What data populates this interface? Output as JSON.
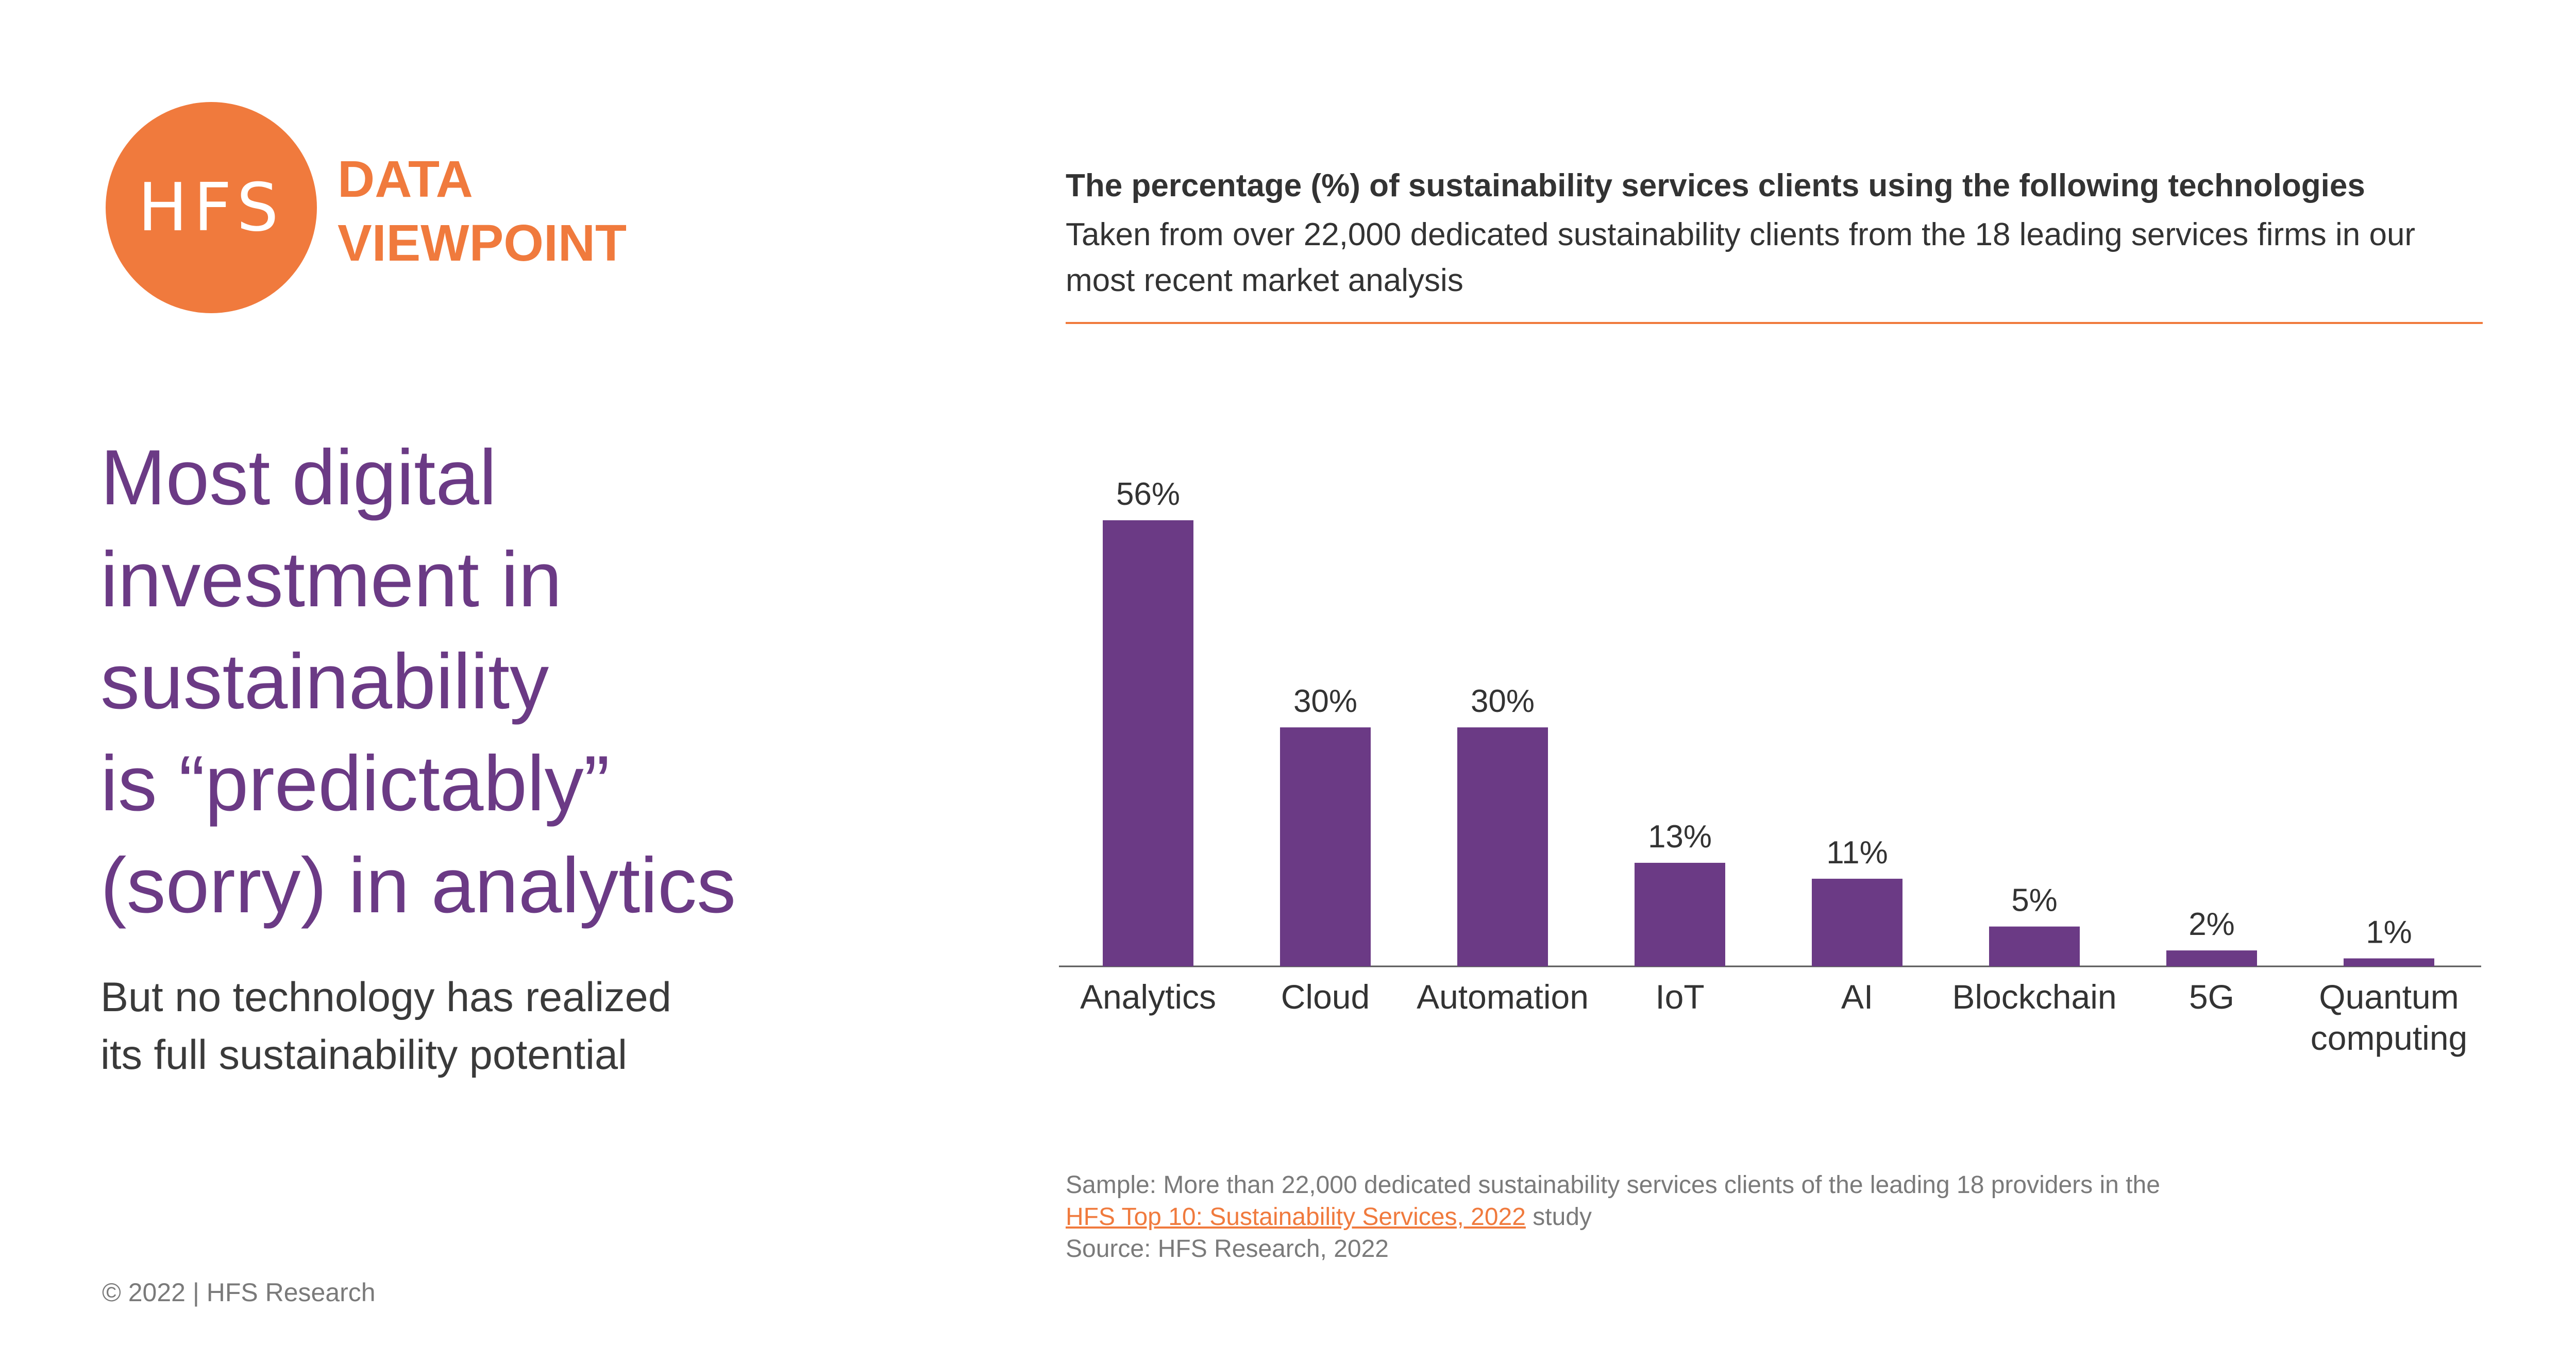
{
  "brand": {
    "logo_text": "HFS",
    "label_line1": "DATA",
    "label_line2": "VIEWPOINT",
    "accent": "#f07a3d",
    "purple": "#6b3a85"
  },
  "headline": {
    "lines": [
      "Most digital",
      "investment in",
      "sustainability",
      "is “predictably”",
      "(sorry) in analytics"
    ],
    "sub_lines": [
      "But no technology has realized",
      "its full sustainability potential"
    ]
  },
  "footer": {
    "copyright": "© 2022 | HFS Research"
  },
  "notes": {
    "sample_prefix": "Sample: More than 22,000 dedicated sustainability services clients of the leading 18 providers in the",
    "study_link": "HFS Top 10: Sustainability Services, 2022",
    "study_suffix": " study",
    "source": "Source: HFS Research, 2022"
  },
  "chart_data": {
    "type": "bar",
    "title": "The percentage (%) of sustainability services clients using the following technologies",
    "subtitle": "Taken from over 22,000 dedicated sustainability clients from the 18 leading services firms in our most recent market analysis",
    "categories": [
      "Analytics",
      "Cloud",
      "Automation",
      "IoT",
      "AI",
      "Blockchain",
      "5G",
      "Quantum computing"
    ],
    "values": [
      56,
      30,
      30,
      13,
      11,
      5,
      2,
      1
    ],
    "value_labels": [
      "56%",
      "30%",
      "30%",
      "13%",
      "11%",
      "5%",
      "2%",
      "1%"
    ],
    "ylim": [
      0,
      56
    ],
    "grid": false,
    "bar_color": "#6b3a85"
  }
}
